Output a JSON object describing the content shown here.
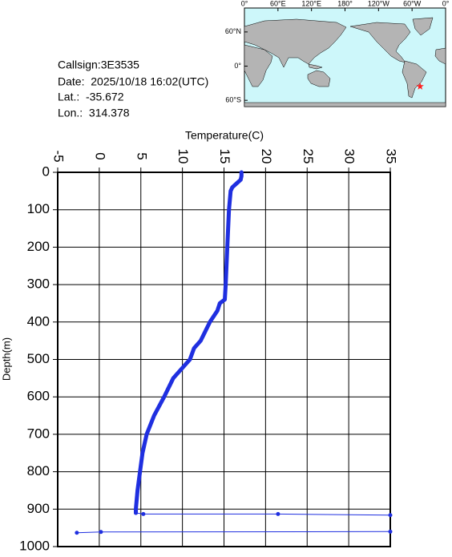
{
  "info": {
    "callsign": "Callsign:3E3535",
    "date": "Date:  2025/10/18 16:02(UTC)",
    "lat": "Lat.:  -35.672",
    "lon": "Lon.:  314.378"
  },
  "map": {
    "lonlim": [
      0,
      360
    ],
    "latlim": [
      -71,
      102
    ],
    "lonticks": [
      {
        "value": 0,
        "label": "0°"
      },
      {
        "value": 60,
        "label": "60°E"
      },
      {
        "value": 120,
        "label": "120°E"
      },
      {
        "value": 180,
        "label": "180°"
      },
      {
        "value": 240,
        "label": "120°W"
      },
      {
        "value": 300,
        "label": "60°W"
      },
      {
        "value": 360,
        "label": "0°"
      }
    ],
    "latticks": [
      {
        "value": 60,
        "label": "60°N"
      },
      {
        "value": 0,
        "label": "0°"
      },
      {
        "value": -60,
        "label": "60°S"
      }
    ],
    "station": {
      "lon": 314.378,
      "lat": -35.672,
      "color": "#ff2020"
    }
  },
  "chart_data": {
    "type": "profile",
    "x_label": "Temperature(C)",
    "y_label": "Depth(m)",
    "xlim": [
      -5,
      35
    ],
    "xticks": [
      -5,
      0,
      5,
      10,
      15,
      20,
      25,
      30,
      35
    ],
    "ylim": [
      0,
      1000
    ],
    "yticks": [
      0,
      100,
      200,
      300,
      400,
      500,
      600,
      700,
      800,
      900,
      1000
    ],
    "y_inverted": true,
    "grid": true,
    "series": [
      {
        "color": "#1f2fe0",
        "width": 5,
        "depth": [
          0,
          10,
          20,
          30,
          40,
          50,
          100,
          200,
          300,
          340,
          350,
          370,
          400,
          450,
          470,
          500,
          550,
          600,
          650,
          700,
          750,
          800,
          850,
          900,
          910
        ],
        "values": [
          17.1,
          17.1,
          17.0,
          16.5,
          16.0,
          15.8,
          15.6,
          15.4,
          15.2,
          15.1,
          14.5,
          14.2,
          13.3,
          12.2,
          11.4,
          10.9,
          8.9,
          7.8,
          6.6,
          5.7,
          5.2,
          4.9,
          4.6,
          4.4,
          4.4
        ]
      },
      {
        "color": "#1f2fe0",
        "width": 1,
        "markers": true,
        "depth": [
          910,
          913,
          913,
          916,
          null,
          963,
          961,
          960
        ],
        "values": [
          4.4,
          5.3,
          21.5,
          35,
          null,
          -2.7,
          0.2,
          35
        ]
      }
    ]
  }
}
